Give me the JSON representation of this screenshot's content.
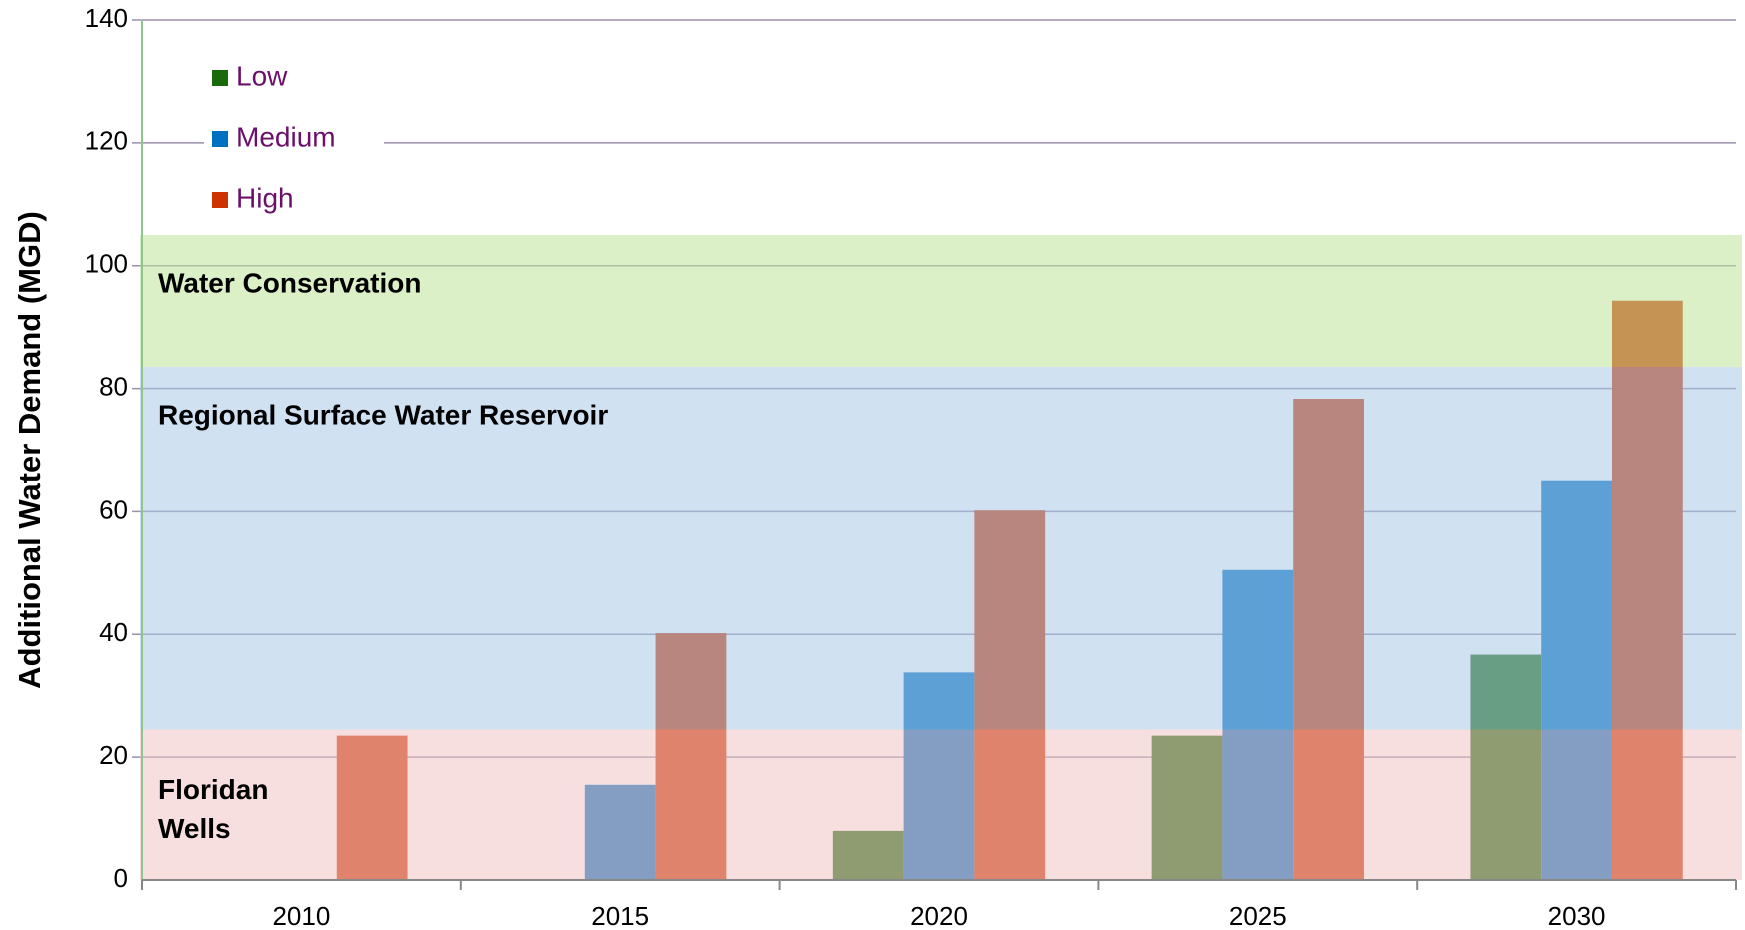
{
  "chart_data": {
    "type": "bar",
    "ylabel": "Additional Water Demand (MGD)",
    "categories": [
      "2010",
      "2015",
      "2020",
      "2025",
      "2030"
    ],
    "series": [
      {
        "name": "Low",
        "color": "#1a6a0c",
        "values": [
          null,
          null,
          8,
          23.5,
          36.7
        ]
      },
      {
        "name": "Medium",
        "color": "#0070c0",
        "values": [
          null,
          15.5,
          33.8,
          50.5,
          65
        ]
      },
      {
        "name": "High",
        "color": "#cc3300",
        "values": [
          23.5,
          40.2,
          60.2,
          78.3,
          94.3
        ]
      }
    ],
    "bands": [
      {
        "label": [
          "Floridan",
          "Wells"
        ],
        "from": 0,
        "to": 24.5,
        "color": "#f0c4c4"
      },
      {
        "label": [
          "Regional Surface Water Reservoir"
        ],
        "from": 24.5,
        "to": 83.5,
        "color": "#a9c9e8"
      },
      {
        "label": [
          "Water Conservation"
        ],
        "from": 83.5,
        "to": 105,
        "color": "#bfe39a"
      }
    ],
    "ylim": [
      0,
      140
    ],
    "yticks": [
      0,
      20,
      40,
      60,
      80,
      100,
      120,
      140
    ],
    "grid": true,
    "legend": "top-left"
  }
}
